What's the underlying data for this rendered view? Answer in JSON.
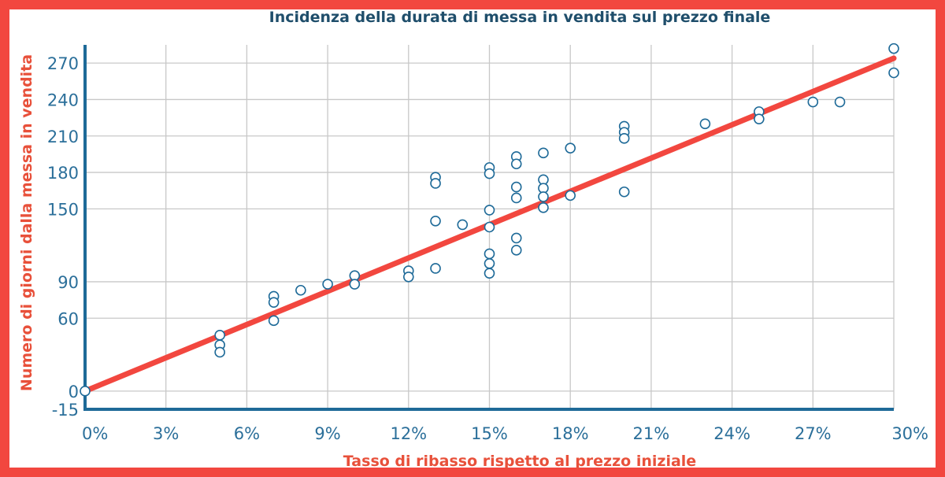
{
  "chart_data": {
    "type": "scatter",
    "title": "Incidenza della durata di messa in vendita sul prezzo finale",
    "xlabel": "Tasso di ribasso rispetto al prezzo iniziale",
    "ylabel": "Numero di giorni dalla messa in vendita",
    "xlim": [
      0,
      30
    ],
    "ylim": [
      -15,
      285
    ],
    "x_ticks": [
      0,
      3,
      6,
      9,
      12,
      15,
      18,
      21,
      24,
      27,
      30
    ],
    "x_tick_labels": [
      "0%",
      "3%",
      "6%",
      "9%",
      "12%",
      "15%",
      "18%",
      "21%",
      "24%",
      "27%",
      "30%"
    ],
    "y_ticks": [
      -15,
      0,
      60,
      90,
      150,
      180,
      210,
      240,
      270
    ],
    "y_tick_labels": [
      "-15",
      "0",
      "60",
      "90",
      "150",
      "180",
      "210",
      "240",
      "270"
    ],
    "grid": true,
    "trendline": {
      "x": [
        0,
        30
      ],
      "y": [
        0,
        274
      ]
    },
    "points": [
      {
        "x": 0,
        "y": 0
      },
      {
        "x": 5,
        "y": 46
      },
      {
        "x": 5,
        "y": 38
      },
      {
        "x": 5,
        "y": 32
      },
      {
        "x": 7,
        "y": 78
      },
      {
        "x": 7,
        "y": 73
      },
      {
        "x": 7,
        "y": 58
      },
      {
        "x": 8,
        "y": 83
      },
      {
        "x": 9,
        "y": 88
      },
      {
        "x": 10,
        "y": 95
      },
      {
        "x": 10,
        "y": 88
      },
      {
        "x": 12,
        "y": 99
      },
      {
        "x": 12,
        "y": 94
      },
      {
        "x": 13,
        "y": 176
      },
      {
        "x": 13,
        "y": 171
      },
      {
        "x": 13,
        "y": 140
      },
      {
        "x": 13,
        "y": 101
      },
      {
        "x": 14,
        "y": 137
      },
      {
        "x": 15,
        "y": 184
      },
      {
        "x": 15,
        "y": 179
      },
      {
        "x": 15,
        "y": 149
      },
      {
        "x": 15,
        "y": 135
      },
      {
        "x": 15,
        "y": 113
      },
      {
        "x": 15,
        "y": 105
      },
      {
        "x": 15,
        "y": 97
      },
      {
        "x": 16,
        "y": 193
      },
      {
        "x": 16,
        "y": 187
      },
      {
        "x": 16,
        "y": 168
      },
      {
        "x": 16,
        "y": 159
      },
      {
        "x": 16,
        "y": 126
      },
      {
        "x": 16,
        "y": 116
      },
      {
        "x": 17,
        "y": 196
      },
      {
        "x": 17,
        "y": 174
      },
      {
        "x": 17,
        "y": 167
      },
      {
        "x": 17,
        "y": 160
      },
      {
        "x": 17,
        "y": 151
      },
      {
        "x": 18,
        "y": 200
      },
      {
        "x": 18,
        "y": 161
      },
      {
        "x": 20,
        "y": 218
      },
      {
        "x": 20,
        "y": 213
      },
      {
        "x": 20,
        "y": 208
      },
      {
        "x": 20,
        "y": 164
      },
      {
        "x": 23,
        "y": 220
      },
      {
        "x": 25,
        "y": 230
      },
      {
        "x": 25,
        "y": 224
      },
      {
        "x": 27,
        "y": 238
      },
      {
        "x": 28,
        "y": 238
      },
      {
        "x": 30,
        "y": 282
      },
      {
        "x": 30,
        "y": 262
      }
    ],
    "colors": {
      "trend": "#f2473f",
      "points": "#1e6a98",
      "axis": "#1e6a98",
      "grid": "#c8c8c8"
    }
  }
}
